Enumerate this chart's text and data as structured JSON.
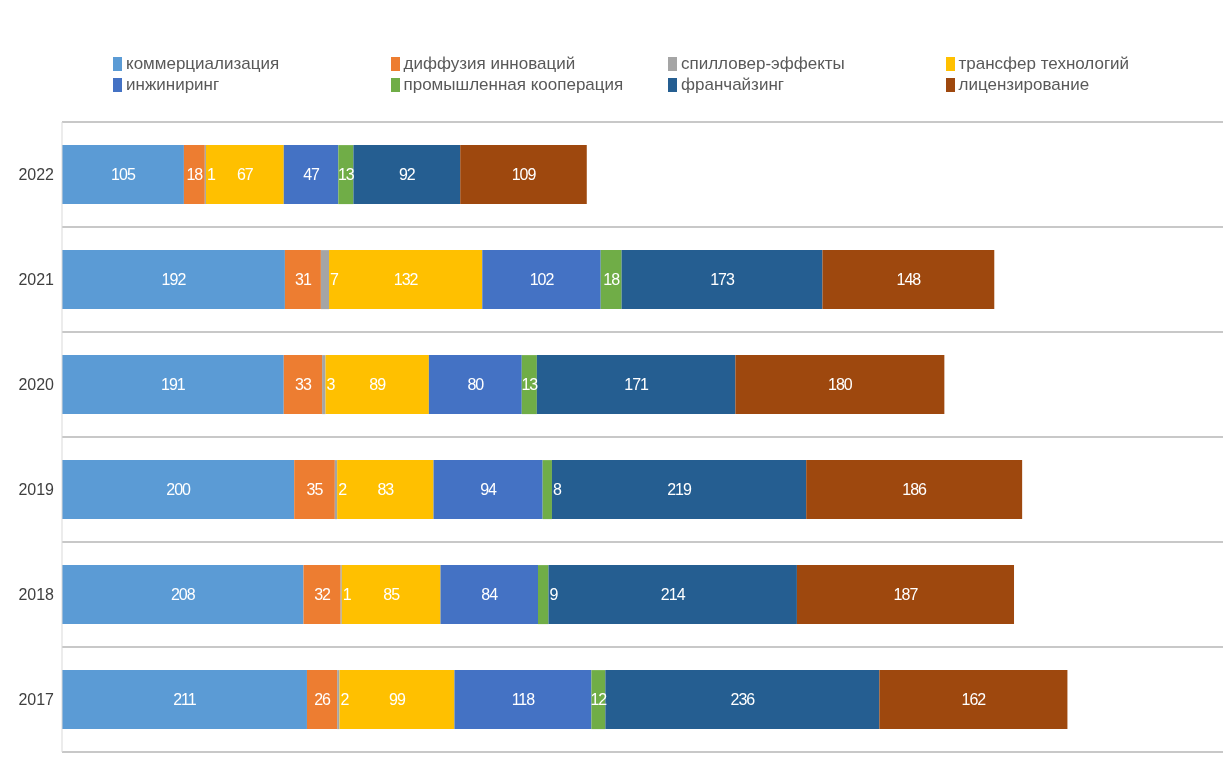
{
  "chart_data": {
    "type": "bar",
    "orientation": "horizontal",
    "stacked": true,
    "data_labels": true,
    "grid": "y",
    "legend": "top",
    "categories": [
      "2022",
      "2021",
      "2020",
      "2019",
      "2018",
      "2017"
    ],
    "series": [
      {
        "name": "коммерциализация",
        "color": "#5b9bd5",
        "values": [
          105,
          192,
          191,
          200,
          208,
          211
        ]
      },
      {
        "name": "диффузия инноваций",
        "color": "#ed7d31",
        "values": [
          18,
          31,
          33,
          35,
          32,
          26
        ]
      },
      {
        "name": "спилловер-эффекты",
        "color": "#a5a5a5",
        "values": [
          1,
          7,
          3,
          2,
          1,
          2
        ]
      },
      {
        "name": "трансфер технологий",
        "color": "#ffc000",
        "values": [
          67,
          132,
          89,
          83,
          85,
          99
        ]
      },
      {
        "name": "инжиниринг",
        "color": "#4472c4",
        "values": [
          47,
          102,
          80,
          94,
          84,
          118
        ]
      },
      {
        "name": "промышленная кооперация",
        "color": "#70ad47",
        "values": [
          13,
          18,
          13,
          8,
          9,
          12
        ]
      },
      {
        "name": "франчайзинг",
        "color": "#255e91",
        "values": [
          92,
          173,
          171,
          219,
          214,
          236
        ]
      },
      {
        "name": "лицензирование",
        "color": "#9e480e",
        "values": [
          109,
          148,
          180,
          186,
          187,
          162
        ]
      }
    ]
  }
}
